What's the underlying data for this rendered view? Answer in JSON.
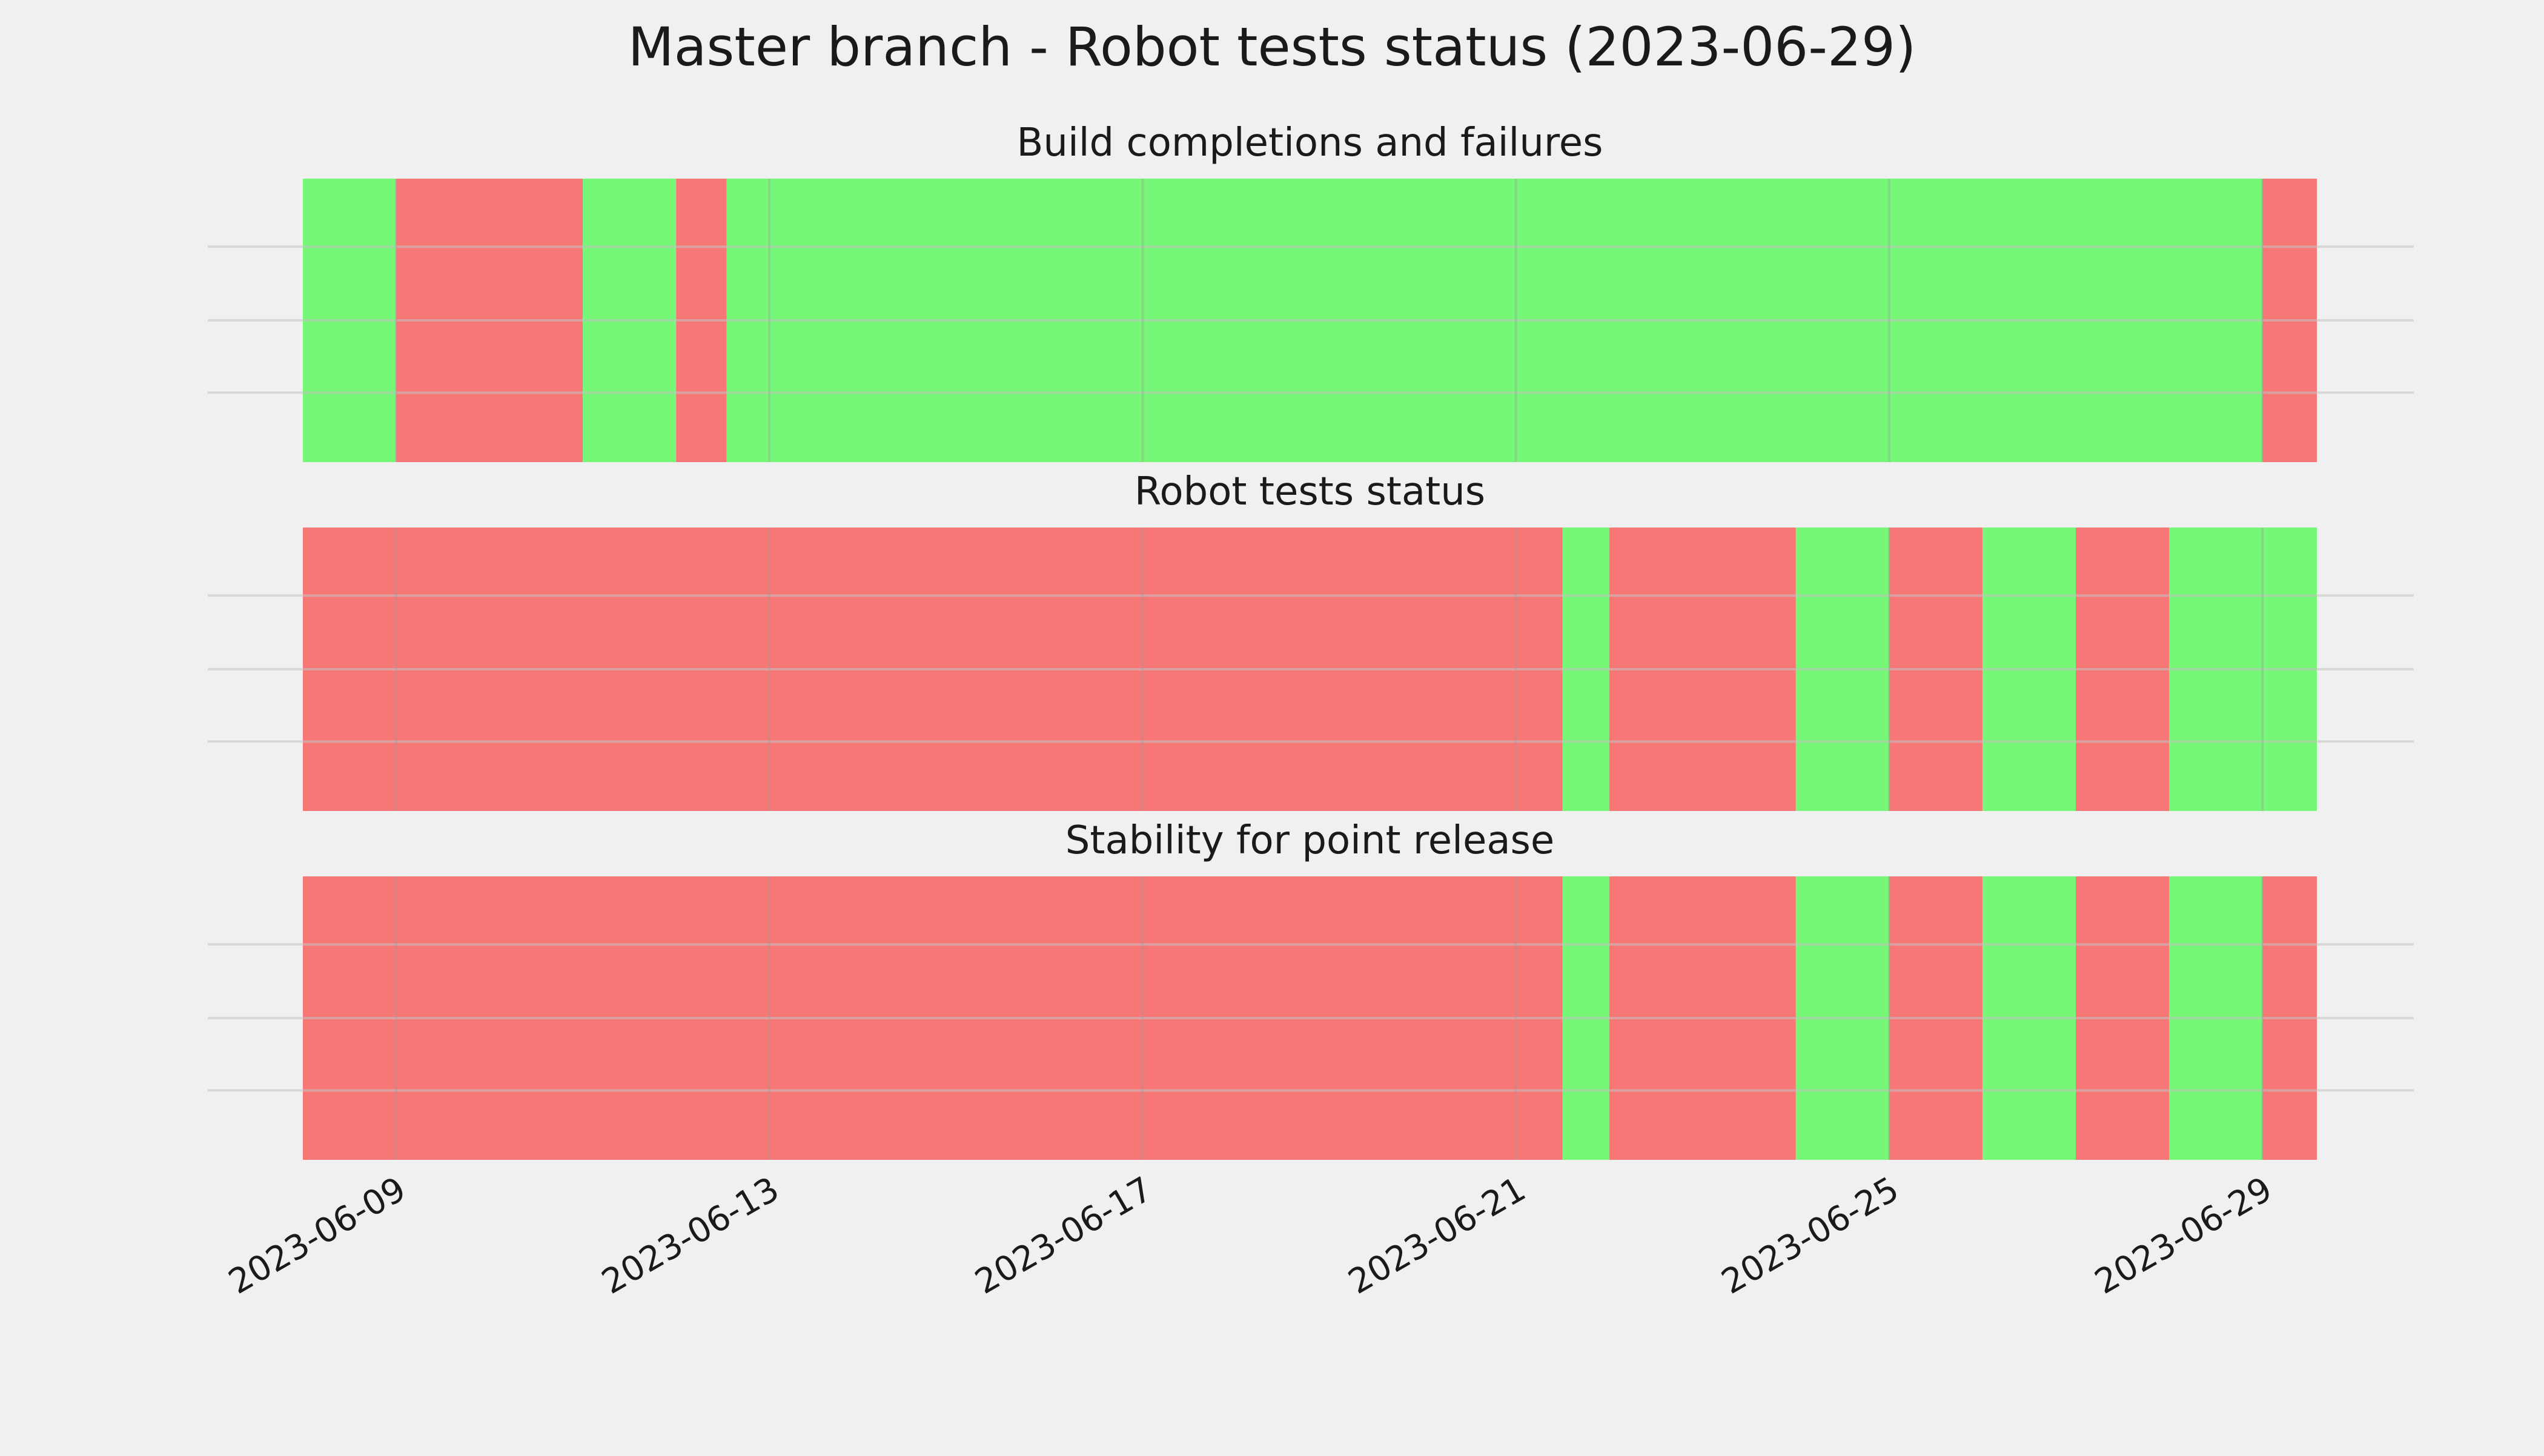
{
  "chart_data": {
    "type": "timeline",
    "title": "Master branch - Robot tests status (2023-06-29)",
    "x_ticks": [
      "2023-06-09",
      "2023-06-13",
      "2023-06-17",
      "2023-06-21",
      "2023-06-25",
      "2023-06-29"
    ],
    "xlim": [
      "2023-06-08 00:00",
      "2023-06-29 14:00"
    ],
    "grid": true,
    "colors": {
      "pass": "#77f777",
      "fail": "#f77777",
      "background": "#f0f0f0",
      "grid": "#c4c4c4"
    },
    "panels": [
      {
        "title": "Build completions and failures",
        "segments": [
          {
            "start": "2023-06-08 00:00",
            "end": "2023-06-09 00:00",
            "status": "pass"
          },
          {
            "start": "2023-06-09 00:00",
            "end": "2023-06-11 00:00",
            "status": "fail"
          },
          {
            "start": "2023-06-11 00:00",
            "end": "2023-06-12 00:00",
            "status": "pass"
          },
          {
            "start": "2023-06-12 00:00",
            "end": "2023-06-12 13:00",
            "status": "fail"
          },
          {
            "start": "2023-06-12 13:00",
            "end": "2023-06-29 00:00",
            "status": "pass"
          },
          {
            "start": "2023-06-29 00:00",
            "end": "2023-06-29 14:00",
            "status": "fail"
          }
        ]
      },
      {
        "title": "Robot tests status",
        "segments": [
          {
            "start": "2023-06-08 00:00",
            "end": "2023-06-21 12:00",
            "status": "fail"
          },
          {
            "start": "2023-06-21 12:00",
            "end": "2023-06-22 00:00",
            "status": "pass"
          },
          {
            "start": "2023-06-22 00:00",
            "end": "2023-06-24 00:00",
            "status": "fail"
          },
          {
            "start": "2023-06-24 00:00",
            "end": "2023-06-25 00:00",
            "status": "pass"
          },
          {
            "start": "2023-06-25 00:00",
            "end": "2023-06-26 00:00",
            "status": "fail"
          },
          {
            "start": "2023-06-26 00:00",
            "end": "2023-06-27 00:00",
            "status": "pass"
          },
          {
            "start": "2023-06-27 00:00",
            "end": "2023-06-28 00:00",
            "status": "fail"
          },
          {
            "start": "2023-06-28 00:00",
            "end": "2023-06-29 14:00",
            "status": "pass"
          }
        ]
      },
      {
        "title": "Stability for point release",
        "segments": [
          {
            "start": "2023-06-08 00:00",
            "end": "2023-06-21 12:00",
            "status": "fail"
          },
          {
            "start": "2023-06-21 12:00",
            "end": "2023-06-22 00:00",
            "status": "pass"
          },
          {
            "start": "2023-06-22 00:00",
            "end": "2023-06-24 00:00",
            "status": "fail"
          },
          {
            "start": "2023-06-24 00:00",
            "end": "2023-06-25 00:00",
            "status": "pass"
          },
          {
            "start": "2023-06-25 00:00",
            "end": "2023-06-26 00:00",
            "status": "fail"
          },
          {
            "start": "2023-06-26 00:00",
            "end": "2023-06-27 00:00",
            "status": "pass"
          },
          {
            "start": "2023-06-27 00:00",
            "end": "2023-06-28 00:00",
            "status": "fail"
          },
          {
            "start": "2023-06-28 00:00",
            "end": "2023-06-29 00:00",
            "status": "pass"
          },
          {
            "start": "2023-06-29 00:00",
            "end": "2023-06-29 14:00",
            "status": "fail"
          }
        ]
      }
    ]
  }
}
